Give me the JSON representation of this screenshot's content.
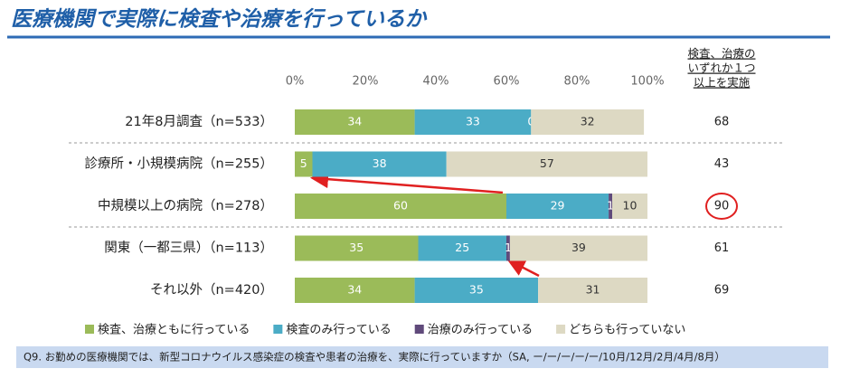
{
  "chart_data": {
    "type": "bar",
    "orientation": "horizontal",
    "stacked": true,
    "title": "医療機関で実際に検査や治療を行っているか",
    "categories": [
      "21年8月調査（n=533）",
      "診療所・小規模病院（n=255）",
      "中規模以上の病院（n=278）",
      "関東（一都三県）（n=113）",
      "それ以外（n=420）"
    ],
    "series": [
      {
        "name": "検査、治療ともに行っている",
        "color": "#9bbb59",
        "values": [
          34,
          5,
          60,
          35,
          34
        ]
      },
      {
        "name": "検査のみ行っている",
        "color": "#4bacc6",
        "values": [
          33,
          38,
          29,
          25,
          35
        ]
      },
      {
        "name": "治療のみ行っている",
        "color": "#604a7b",
        "values": [
          0,
          null,
          1,
          1,
          null
        ]
      },
      {
        "name": "どちらも行っていない",
        "color": "#ddd9c3",
        "values": [
          32,
          57,
          10,
          39,
          31
        ]
      }
    ],
    "xlim": [
      0,
      100
    ],
    "xticks": [
      {
        "value": 0,
        "label": "0%"
      },
      {
        "value": 20,
        "label": "20%"
      },
      {
        "value": 40,
        "label": "40%"
      },
      {
        "value": 60,
        "label": "60%"
      },
      {
        "value": 80,
        "label": "80%"
      },
      {
        "value": 100,
        "label": "100%"
      }
    ],
    "summary": {
      "title": [
        "検査、治療の",
        "いずれか１つ",
        "以上を実施"
      ],
      "values": [
        68,
        43,
        90,
        61,
        69
      ]
    },
    "note": "Q9. お勤めの医療機関では、新型コロナウイルス感染症の検査や患者の治療を、実際に行っていますか（SA, ー/ー/ー/ー/ー/10月/12月/2月/4月/8月）"
  }
}
